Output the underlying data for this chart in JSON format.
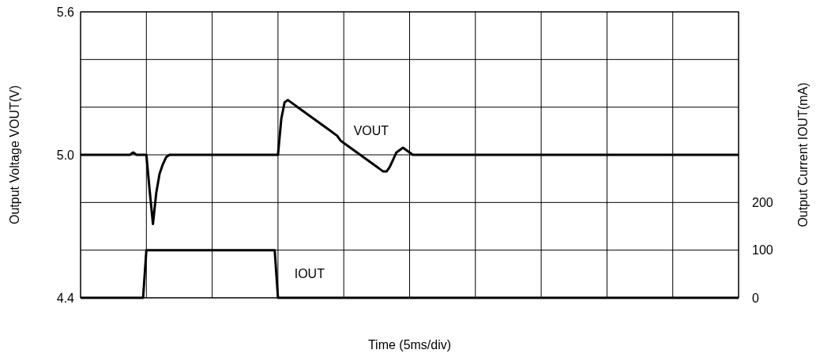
{
  "chart_data": {
    "type": "line",
    "xlabel": "Time (5ms/div)",
    "ylabel": "Output Voltage VOUT(V)",
    "y2label": "Output Current IOUT(mA)",
    "categories": [
      null,
      null,
      null,
      null,
      null,
      null,
      null,
      null,
      null,
      null,
      null,
      null,
      null,
      null,
      null,
      null,
      null,
      null,
      null,
      null,
      null,
      null,
      null,
      null,
      null,
      null,
      null,
      null,
      null,
      null,
      null,
      null,
      null,
      null,
      null,
      null,
      null,
      null,
      null,
      null,
      null,
      null,
      null,
      null,
      null,
      null,
      null,
      null,
      null,
      null,
      null,
      null,
      null,
      null,
      null,
      null,
      null,
      null,
      null,
      null,
      null,
      null,
      null,
      null,
      null,
      null,
      null,
      null,
      null,
      null,
      null,
      null,
      null,
      null,
      null,
      null,
      null,
      null,
      null,
      null,
      null,
      null,
      null,
      null,
      null,
      null,
      null,
      null,
      null,
      null,
      null,
      null,
      null,
      null,
      null,
      null,
      null,
      null,
      null,
      null,
      null,
      null,
      null,
      null,
      null,
      null,
      null,
      null,
      null,
      null,
      null,
      null,
      null,
      null,
      null,
      null,
      null,
      null,
      null,
      null,
      null,
      null,
      null,
      null,
      null,
      null,
      null,
      null,
      null,
      null,
      null,
      null,
      null,
      null,
      null,
      null,
      null,
      null,
      null,
      null,
      null,
      null,
      null,
      null,
      null,
      null,
      null,
      null,
      null,
      null,
      null,
      null,
      null,
      null,
      null,
      null,
      null,
      null,
      null,
      null,
      null,
      null,
      null,
      null,
      null,
      null,
      null,
      null,
      null,
      null,
      null,
      null,
      null,
      null,
      null,
      null,
      null,
      null,
      null,
      null,
      null,
      null,
      null,
      null,
      null,
      null,
      null,
      null,
      null,
      null,
      null,
      null,
      null,
      null,
      null,
      null,
      null,
      null,
      null,
      null,
      null
    ],
    "ylim": [
      4.4,
      5.6
    ],
    "yticks": [
      4.4,
      {
        "value": 4.6,
        "label": null
      },
      {
        "value": 4.8,
        "label": null
      },
      {
        "value": 5,
        "label": "5.0"
      },
      {
        "value": 5.2,
        "label": null
      },
      {
        "value": 5.4,
        "label": null
      },
      5.6
    ],
    "y2lim": [
      0,
      600
    ],
    "y2ticks": [
      0,
      100,
      200
    ],
    "grid": true,
    "marker": "none",
    "line_style": "solid",
    "series": [
      {
        "name": "VOUT",
        "color": "#000000",
        "values": [
          5,
          5,
          5,
          5,
          5,
          5,
          5,
          5,
          5,
          5,
          5,
          5,
          5,
          5,
          5,
          5,
          5.01,
          5,
          5,
          5,
          5,
          4.85,
          4.71,
          4.84,
          4.92,
          4.96,
          4.99,
          5,
          5,
          5,
          5,
          5,
          5,
          5,
          5,
          5,
          5,
          5,
          5,
          5,
          5,
          5,
          5,
          5,
          5,
          5,
          5,
          5,
          5,
          5,
          5,
          5,
          5,
          5,
          5,
          5,
          5,
          5,
          5,
          5,
          5,
          5.15,
          5.22,
          5.23,
          5.22,
          5.21,
          5.2,
          5.19,
          5.18,
          5.17,
          5.16,
          5.15,
          5.14,
          5.13,
          5.12,
          5.11,
          5.1,
          5.09,
          5.08,
          5.06,
          5.05,
          5.04,
          5.03,
          5.02,
          5.01,
          5,
          4.99,
          4.98,
          4.97,
          4.96,
          4.95,
          4.94,
          4.93,
          4.93,
          4.95,
          4.98,
          5.01,
          5.02,
          5.03,
          5.02,
          5.01,
          5,
          5,
          5,
          5,
          5,
          5,
          5,
          5,
          5,
          5,
          5,
          5,
          5,
          5,
          5,
          5,
          5,
          5,
          5,
          5,
          5,
          5,
          5,
          5,
          5,
          5,
          5,
          5,
          5,
          5,
          5,
          5,
          5,
          5,
          5,
          5,
          5,
          5,
          5,
          5,
          5,
          5,
          5,
          5,
          5,
          5,
          5,
          5,
          5,
          5,
          5,
          5,
          5,
          5,
          5,
          5,
          5,
          5,
          5,
          5,
          5,
          5,
          5,
          5,
          5,
          5,
          5,
          5,
          5,
          5,
          5,
          5,
          5,
          5,
          5,
          5,
          5,
          5,
          5,
          5,
          5,
          5,
          5,
          5,
          5,
          5,
          5,
          5,
          5,
          5,
          5,
          5,
          5,
          5,
          5,
          5,
          5,
          5,
          5,
          5
        ]
      },
      {
        "name": "IOUT",
        "color": "#000000",
        "axis": "y2",
        "values": [
          0,
          0,
          0,
          0,
          0,
          0,
          0,
          0,
          0,
          0,
          0,
          0,
          0,
          0,
          0,
          0,
          0,
          0,
          0,
          0,
          100,
          100,
          100,
          100,
          100,
          100,
          100,
          100,
          100,
          100,
          100,
          100,
          100,
          100,
          100,
          100,
          100,
          100,
          100,
          100,
          100,
          100,
          100,
          100,
          100,
          100,
          100,
          100,
          100,
          100,
          100,
          100,
          100,
          100,
          100,
          100,
          100,
          100,
          100,
          100,
          0,
          0,
          0,
          0,
          0,
          0,
          0,
          0,
          0,
          0,
          0,
          0,
          0,
          0,
          0,
          0,
          0,
          0,
          0,
          0,
          0,
          0,
          0,
          0,
          0,
          0,
          0,
          0,
          0,
          0,
          0,
          0,
          0,
          0,
          0,
          0,
          0,
          0,
          0,
          0,
          0,
          0,
          0,
          0,
          0,
          0,
          0,
          0,
          0,
          0,
          0,
          0,
          0,
          0,
          0,
          0,
          0,
          0,
          0,
          0,
          0,
          0,
          0,
          0,
          0,
          0,
          0,
          0,
          0,
          0,
          0,
          0,
          0,
          0,
          0,
          0,
          0,
          0,
          0,
          0,
          0,
          0,
          0,
          0,
          0,
          0,
          0,
          0,
          0,
          0,
          0,
          0,
          0,
          0,
          0,
          0,
          0,
          0,
          0,
          0,
          0,
          0,
          0,
          0,
          0,
          0,
          0,
          0,
          0,
          0,
          0,
          0,
          0,
          0,
          0,
          0,
          0,
          0,
          0,
          0,
          0,
          0,
          0,
          0,
          0,
          0,
          0,
          0,
          0,
          0,
          0,
          0,
          0,
          0,
          0,
          0,
          0,
          0,
          0,
          0,
          0
        ]
      }
    ]
  }
}
